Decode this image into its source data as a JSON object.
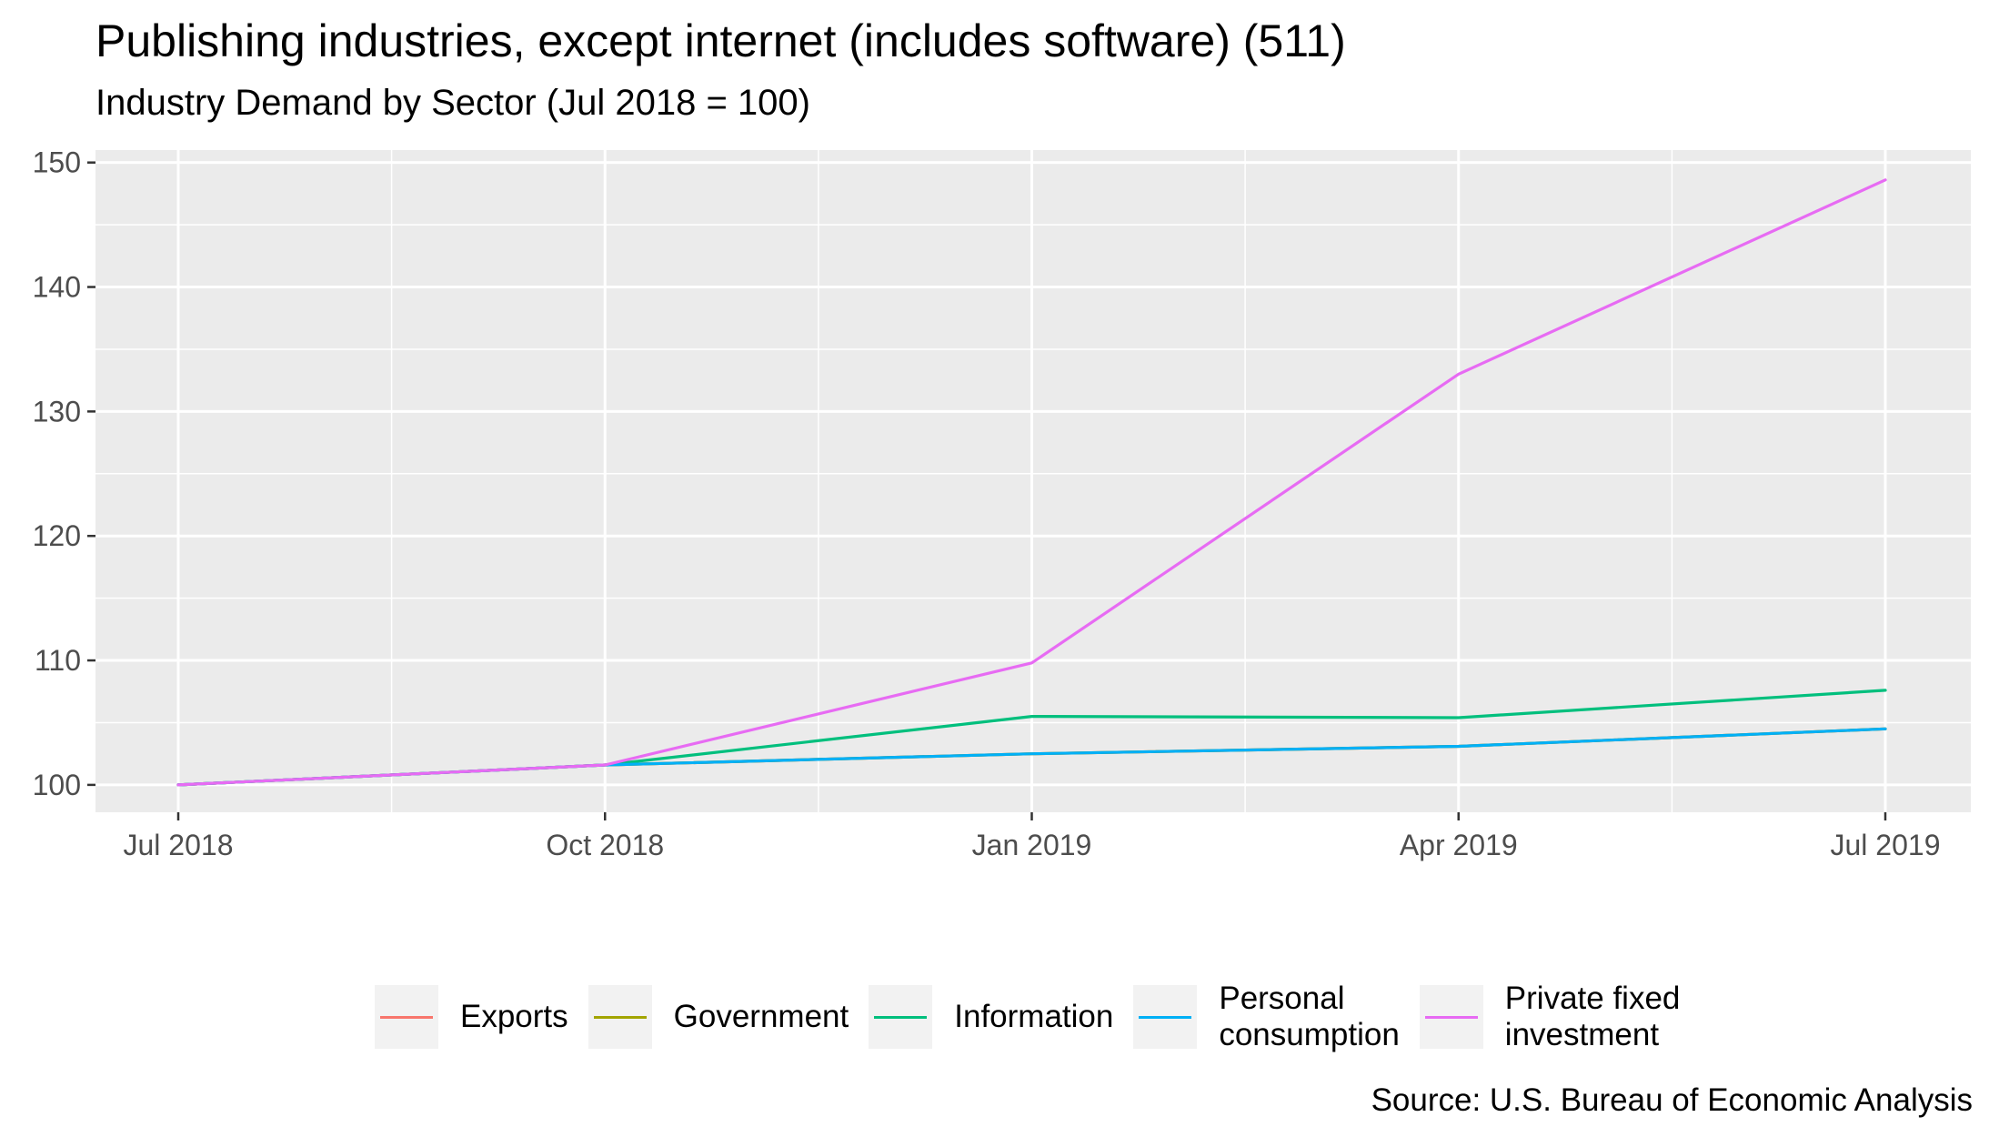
{
  "title": "Publishing industries, except internet (includes software) (511)",
  "subtitle": "Industry Demand by Sector (Jul 2018 = 100)",
  "source": "Source: U.S. Bureau of Economic Analysis",
  "colors": {
    "panel_bg": "#ebebeb",
    "grid": "#ffffff",
    "tick_text": "#4d4d4d",
    "legend_key_bg": "#f2f2f2"
  },
  "chart_data": {
    "type": "line",
    "x": [
      "Jul 2018",
      "Oct 2018",
      "Jan 2019",
      "Apr 2019",
      "Jul 2019"
    ],
    "x_ticks": [
      "Jul 2018",
      "Oct 2018",
      "Jan 2019",
      "Apr 2019",
      "Jul 2019"
    ],
    "y_ticks": [
      100,
      110,
      120,
      130,
      140,
      150
    ],
    "ylim": [
      97.8,
      151.0
    ],
    "grid": true,
    "legend_position": "bottom",
    "series": [
      {
        "name": "Exports",
        "color": "#f8766d",
        "values": [
          100,
          101.6,
          102.5,
          103.1,
          104.5
        ]
      },
      {
        "name": "Government",
        "color": "#a3a500",
        "values": [
          100,
          101.6,
          102.5,
          103.1,
          104.5
        ]
      },
      {
        "name": "Information",
        "color": "#00bf7d",
        "values": [
          100,
          101.6,
          105.5,
          105.4,
          107.6
        ]
      },
      {
        "name": "Personal\nconsumption",
        "color": "#00b0f6",
        "values": [
          100,
          101.6,
          102.5,
          103.1,
          104.5
        ]
      },
      {
        "name": "Private fixed\ninvestment",
        "color": "#e76bf3",
        "values": [
          100,
          101.6,
          109.8,
          133.0,
          148.6
        ]
      }
    ]
  }
}
